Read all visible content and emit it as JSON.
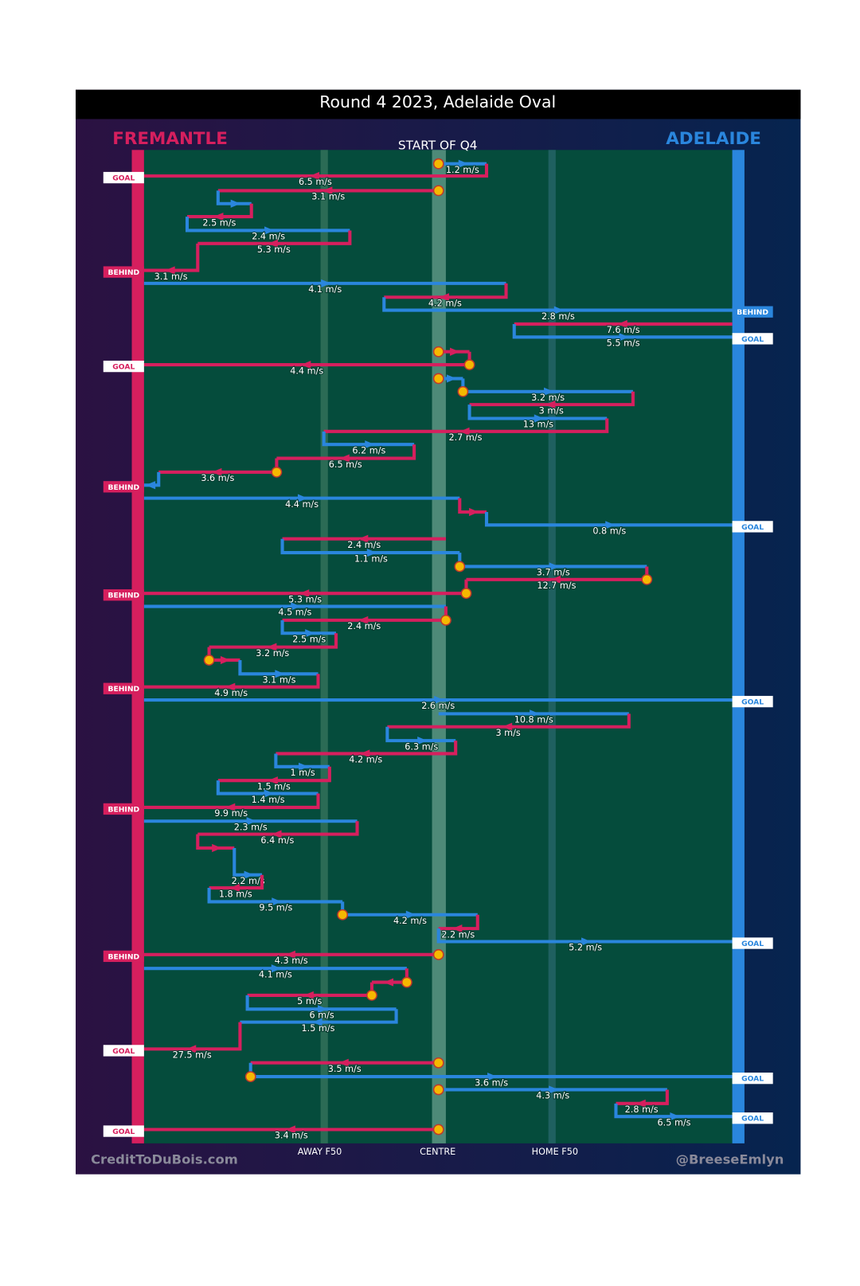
{
  "header": {
    "title": "Round 4 2023, Adelaide Oval",
    "team_left": "FREMANTLE",
    "team_right": "ADELAIDE",
    "period": "START OF Q4"
  },
  "field_labels": [
    "AWAY F50",
    "CENTRE",
    "HOME F50"
  ],
  "passes": [
    "1.2 m/s",
    "6.5 m/s",
    "3.1 m/s",
    "2.5 m/s",
    "2.4 m/s",
    "5.3 m/s",
    "3.1 m/s",
    "4.1 m/s",
    "4.2 m/s",
    "2.8 m/s",
    "7.6 m/s",
    "5.5 m/s",
    "4.4 m/s",
    "3.2 m/s",
    "3 m/s",
    "13 m/s",
    "2.7 m/s",
    "6.2 m/s",
    "6.5 m/s",
    "3.6 m/s",
    "4.4 m/s",
    "0.8 m/s",
    "2.4 m/s",
    "1.1 m/s",
    "3.7 m/s",
    "12.7 m/s",
    "5.3 m/s",
    "4.5 m/s",
    "2.4 m/s",
    "2.5 m/s",
    "3.2 m/s",
    "3.1 m/s",
    "4.9 m/s",
    "2.6 m/s",
    "10.8 m/s",
    "3 m/s",
    "6.3 m/s",
    "4.2 m/s",
    "1 m/s",
    "1.5 m/s",
    "1.4 m/s",
    "9.9 m/s",
    "2.3 m/s",
    "6.4 m/s",
    "2.2 m/s",
    "1.8 m/s",
    "9.5 m/s",
    "4.2 m/s",
    "2.2 m/s",
    "5.2 m/s",
    "4.3 m/s",
    "4.1 m/s",
    "5 m/s",
    "6 m/s",
    "1.5 m/s",
    "27.5 m/s",
    "3.5 m/s",
    "3.6 m/s",
    "4.3 m/s",
    "2.8 m/s",
    "6.5 m/s",
    "3.4 m/s"
  ],
  "outcomes": [
    "GOAL",
    "BEHIND",
    "BEHIND",
    "GOAL",
    "GOAL",
    "BEHIND",
    "GOAL",
    "BEHIND",
    "BEHIND",
    "GOAL",
    "BEHIND",
    "GOAL",
    "BEHIND",
    "GOAL",
    "GOAL",
    "GOAL",
    "GOAL"
  ],
  "footer": {
    "left": "CreditToDuBois.com",
    "right": "@BreeseEmlyn"
  }
}
